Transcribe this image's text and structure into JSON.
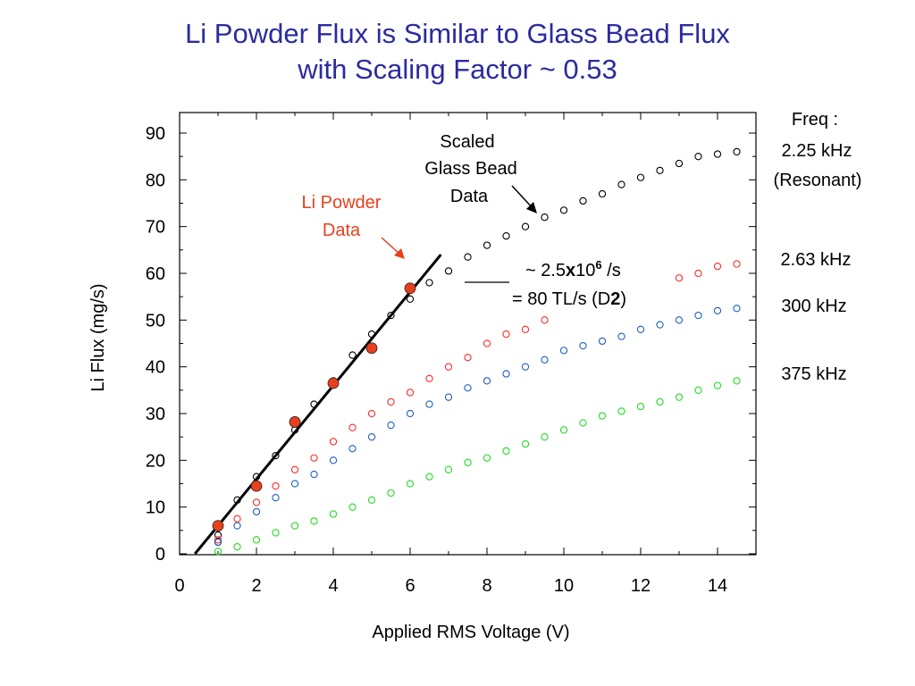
{
  "slide": {
    "title_line1": "Li Powder Flux is Similar to Glass Bead Flux",
    "title_line2": "with Scaling Factor ~ 0.53"
  },
  "chart_data": {
    "type": "scatter",
    "xlabel": "Applied RMS Voltage (V)",
    "ylabel": "Li Flux (mg/s)",
    "xlim": [
      0,
      15
    ],
    "ylim": [
      0,
      92
    ],
    "xticks": [
      0,
      2,
      4,
      6,
      8,
      10,
      12,
      14
    ],
    "yticks": [
      0,
      10,
      20,
      30,
      40,
      50,
      60,
      70,
      80,
      90
    ],
    "grid": false,
    "legend": {
      "heading": "Freq :",
      "entries": [
        {
          "label_line1": "2.25 kHz",
          "label_line2": "(Resonant)",
          "color": "#000000"
        },
        {
          "label_line1": "2.63 kHz",
          "color": "#ff2a2a"
        },
        {
          "label_line1": "300 kHz",
          "color": "#1f5fbf"
        },
        {
          "label_line1": "375 kHz",
          "color": "#22dd22"
        }
      ]
    },
    "series": [
      {
        "name": "2.25 kHz",
        "color": "#000000",
        "marker": "open-circle",
        "x": [
          1,
          1,
          1.5,
          2,
          2.5,
          3,
          3.5,
          4,
          4.5,
          5,
          5.5,
          6,
          6.5,
          7,
          7.5,
          8,
          8.5,
          9,
          9.5,
          10,
          10.5,
          11,
          11.5,
          12,
          12.5,
          13,
          13.5,
          14,
          14.5
        ],
        "y": [
          2.5,
          4,
          11.5,
          16.5,
          21,
          26.5,
          32,
          37,
          42.5,
          47,
          51,
          54.5,
          58,
          60.5,
          63.5,
          66,
          68,
          70,
          72,
          73.5,
          75.5,
          77,
          79,
          80.5,
          82,
          83.5,
          85,
          85.5,
          86
        ]
      },
      {
        "name": "2.63 kHz",
        "color": "#ff2a2a",
        "marker": "open-circle",
        "x": [
          1,
          1.5,
          2,
          2.5,
          3,
          3.5,
          4,
          4.5,
          5,
          5.5,
          6,
          6.5,
          7,
          7.5,
          8,
          8.5,
          9,
          9.5,
          13,
          13.5,
          14,
          14.5
        ],
        "y": [
          3,
          7.5,
          11,
          14.5,
          18,
          20.5,
          24,
          27,
          30,
          32.5,
          34.5,
          37.5,
          40,
          42,
          45,
          47,
          48,
          50,
          59,
          60,
          61.5,
          62
        ]
      },
      {
        "name": "300 kHz",
        "color": "#1f5fbf",
        "marker": "open-circle",
        "x": [
          1,
          1.5,
          2,
          2.5,
          3,
          3.5,
          4,
          4.5,
          5,
          5.5,
          6,
          6.5,
          7,
          7.5,
          8,
          8.5,
          9,
          9.5,
          10,
          10.5,
          11,
          11.5,
          12,
          12.5,
          13,
          13.5,
          14,
          14.5
        ],
        "y": [
          2.5,
          6,
          9,
          12,
          15,
          17,
          20,
          22.5,
          25,
          27.5,
          30,
          32,
          33.5,
          35.5,
          37,
          38.5,
          40,
          41.5,
          43.5,
          44.5,
          45.5,
          46.5,
          48,
          49,
          50,
          51,
          52,
          52.5
        ]
      },
      {
        "name": "375 kHz",
        "color": "#22dd22",
        "marker": "open-circle",
        "x": [
          1,
          1.5,
          2,
          2.5,
          3,
          3.5,
          4,
          4.5,
          5,
          5.5,
          6,
          6.5,
          7,
          7.5,
          8,
          8.5,
          9,
          9.5,
          10,
          10.5,
          11,
          11.5,
          12,
          12.5,
          13,
          13.5,
          14,
          14.5
        ],
        "y": [
          0.5,
          1.5,
          3,
          4.5,
          6,
          7,
          8.5,
          10,
          11.5,
          13,
          15,
          16.5,
          18,
          19.5,
          20.5,
          22,
          23.5,
          25,
          26.5,
          28,
          29.5,
          30.5,
          31.5,
          32.5,
          33.5,
          35,
          36,
          37
        ]
      },
      {
        "name": "Li Powder Data",
        "color": "#e8401c",
        "marker": "filled-circle",
        "x": [
          1,
          2,
          3,
          4,
          5,
          6
        ],
        "y": [
          6,
          14.5,
          28.2,
          36.5,
          44,
          56.8
        ]
      }
    ],
    "fit_line": {
      "x": [
        0.4,
        6.8
      ],
      "y": [
        0,
        64
      ],
      "color": "#000000"
    },
    "annotations": {
      "scaled": {
        "line1": "Scaled",
        "line2": "Glass Bead",
        "line3": "Data",
        "arrow_to": {
          "x": 9.5,
          "y": 72
        }
      },
      "powder": {
        "line1": "Li Powder",
        "line2": "Data",
        "color": "#e8401c",
        "arrow_to": {
          "x": 6.0,
          "y": 60.5
        }
      },
      "slope": {
        "line1_pre": "~ 2.5",
        "line1_bold": "x",
        "line1_mid": "10",
        "line1_sup": "6",
        "line1_post": " /s",
        "line2_pre": "= 80 TL/s (D",
        "line2_bold": "2",
        "line2_post": ")"
      }
    }
  }
}
